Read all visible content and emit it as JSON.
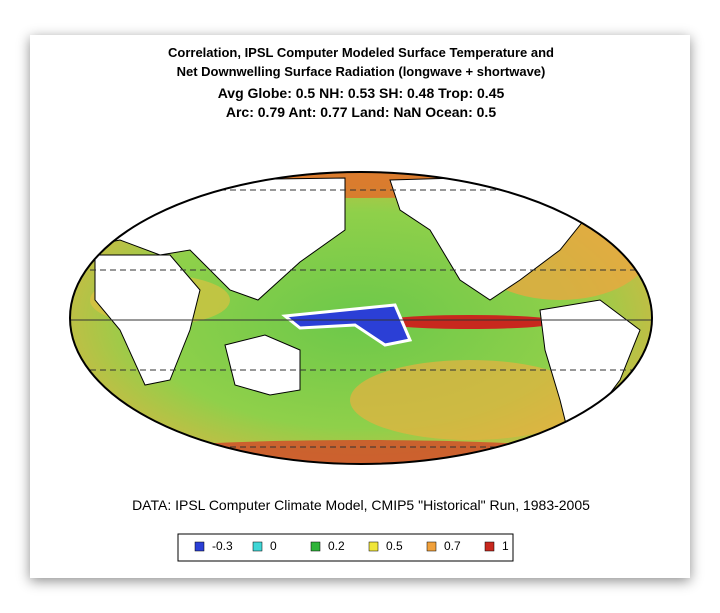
{
  "header": {
    "title_lines": [
      "Correlation, IPSL Computer Modeled Surface Temperature and",
      "Net Downwelling Surface Radiation (longwave + shortwave)"
    ],
    "stats_lines": [
      "Avg Globe: 0.5  NH: 0.53  SH: 0.48  Trop: 0.45",
      "Arc: 0.79  Ant: 0.77  Land: NaN Ocean: 0.5"
    ]
  },
  "source": "DATA: IPSL Computer Climate Model, CMIP5 \"Historical\" Run, 1983-2005",
  "legend": [
    {
      "label": "-0.3",
      "color": "#2b3fd6"
    },
    {
      "label": "0",
      "color": "#3fd6d6"
    },
    {
      "label": "0.2",
      "color": "#2fb43a"
    },
    {
      "label": "0.5",
      "color": "#f0e63a"
    },
    {
      "label": "0.7",
      "color": "#f0a03a"
    },
    {
      "label": "1",
      "color": "#c8281e"
    }
  ]
}
